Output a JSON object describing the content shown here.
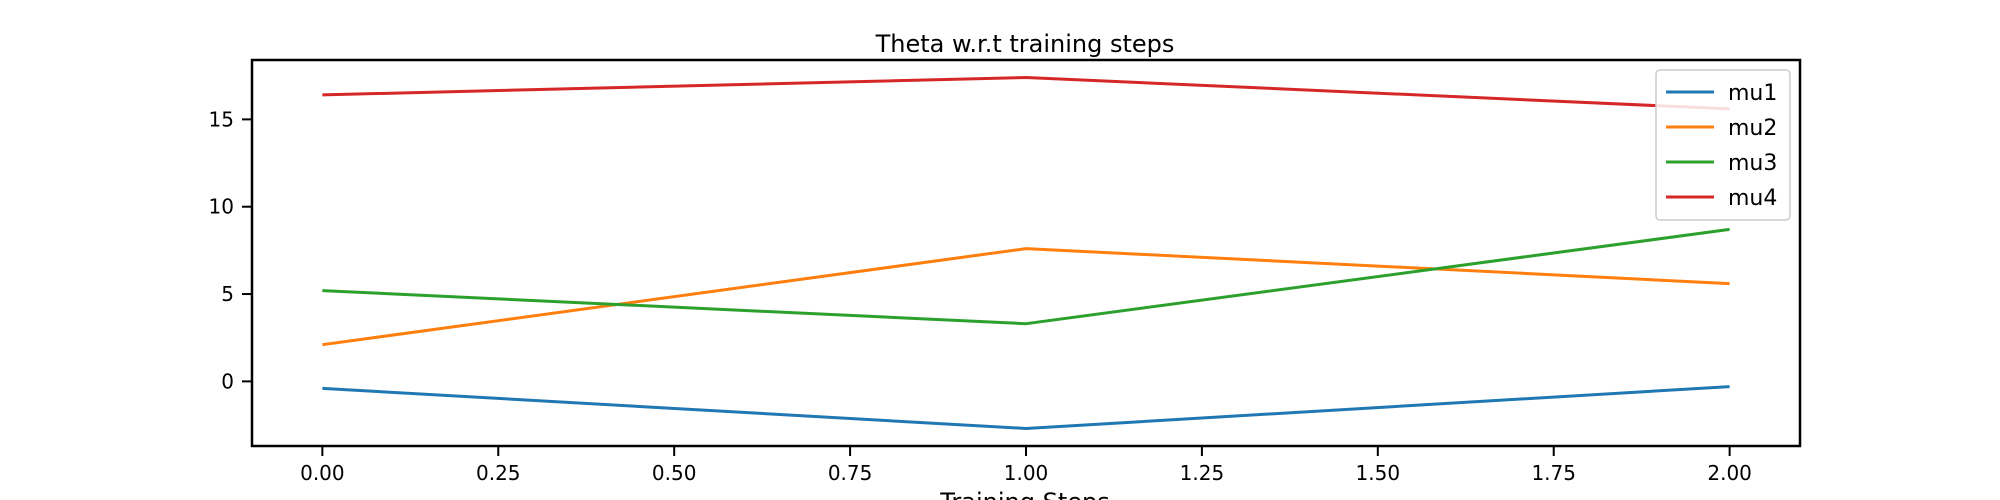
{
  "chart_data": {
    "type": "line",
    "title": "Theta w.r.t training steps",
    "xlabel": "Training Steps",
    "ylabel": "",
    "xlim": [
      -0.1,
      2.1
    ],
    "ylim": [
      -3.7,
      18.4
    ],
    "x": [
      0,
      1,
      2
    ],
    "xticks": [
      "0.00",
      "0.25",
      "0.50",
      "0.75",
      "1.00",
      "1.25",
      "1.50",
      "1.75",
      "2.00"
    ],
    "yticks": [
      "0",
      "5",
      "10",
      "15"
    ],
    "grid": false,
    "legend_position": "top-right",
    "series": [
      {
        "name": "mu1",
        "color": "#1f77b4",
        "values": [
          -0.4,
          -2.7,
          -0.3
        ]
      },
      {
        "name": "mu2",
        "color": "#ff7f0e",
        "values": [
          2.1,
          7.6,
          5.6
        ]
      },
      {
        "name": "mu3",
        "color": "#2ca02c",
        "values": [
          5.2,
          3.3,
          8.7
        ]
      },
      {
        "name": "mu4",
        "color": "#d62728",
        "values": [
          16.4,
          17.4,
          15.6
        ]
      }
    ]
  }
}
